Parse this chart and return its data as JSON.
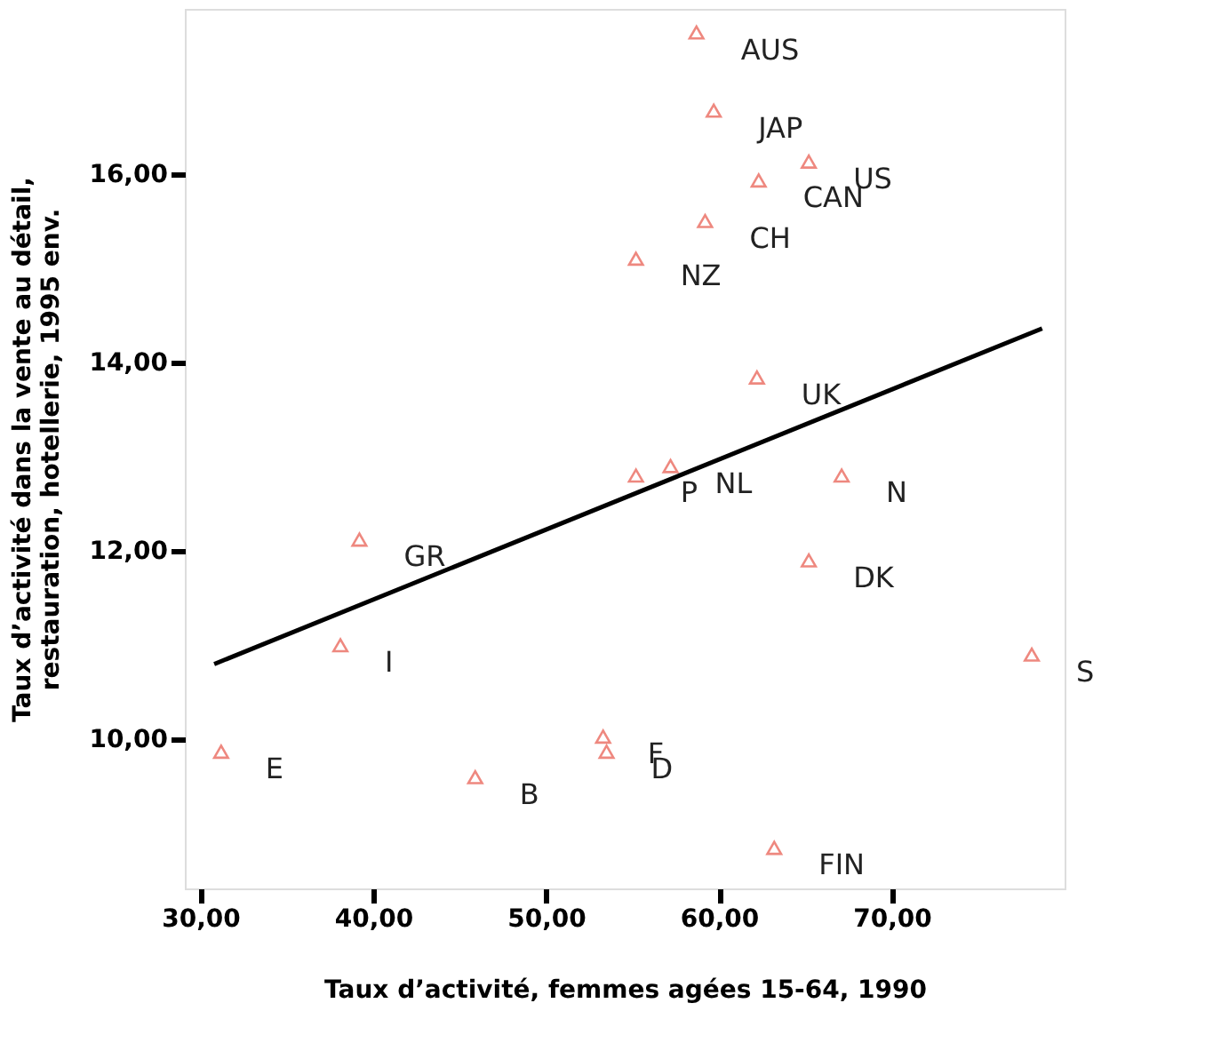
{
  "chart_data": {
    "type": "scatter",
    "xlabel": "Taux d’activité, femmes agées 15-64, 1990",
    "ylabel": "Taux d’activité dans la vente au détail,\nrestauration, hotellerie, 1995 env.",
    "xlim": [
      29.1,
      80
    ],
    "ylim": [
      8.42,
      17.75
    ],
    "xticks": [
      {
        "value": 30,
        "label": "30,00"
      },
      {
        "value": 40,
        "label": "40,00"
      },
      {
        "value": 50,
        "label": "50,00"
      },
      {
        "value": 60,
        "label": "60,00"
      },
      {
        "value": 70,
        "label": "70,00"
      }
    ],
    "yticks": [
      {
        "value": 10,
        "label": "10,00"
      },
      {
        "value": 12,
        "label": "12,00"
      },
      {
        "value": 14,
        "label": "14,00"
      },
      {
        "value": 16,
        "label": "16,00"
      }
    ],
    "grid": false,
    "series": [
      {
        "type": "scatter",
        "color": "#e8574a",
        "marker": "triangle",
        "x": [
          58.7,
          59.7,
          65.2,
          62.3,
          59.2,
          55.2,
          62.2,
          55.2,
          57.2,
          67.1,
          39.2,
          65.2,
          38.1,
          78.1,
          31.2,
          53.3,
          53.5,
          45.9,
          63.2
        ],
        "values": [
          17.5,
          16.67,
          16.13,
          15.93,
          15.5,
          15.1,
          13.84,
          12.8,
          12.9,
          12.8,
          12.12,
          11.9,
          11.0,
          10.9,
          9.87,
          10.03,
          9.87,
          9.6,
          8.85
        ]
      },
      {
        "type": "line",
        "color": "#000000",
        "line_style": "solid",
        "x": [
          30.8,
          78.7
        ],
        "values": [
          10.8,
          14.36
        ]
      }
    ],
    "annotations": [
      {
        "text": "AUS",
        "x": 58.7,
        "y": 17.5
      },
      {
        "text": "JAP",
        "x": 59.7,
        "y": 16.67
      },
      {
        "text": "US",
        "x": 65.2,
        "y": 16.13
      },
      {
        "text": "CAN",
        "x": 62.3,
        "y": 15.93
      },
      {
        "text": "CH",
        "x": 59.2,
        "y": 15.5
      },
      {
        "text": "NZ",
        "x": 55.2,
        "y": 15.1
      },
      {
        "text": "UK",
        "x": 62.2,
        "y": 13.84
      },
      {
        "text": "P",
        "x": 55.2,
        "y": 12.8
      },
      {
        "text": "NL",
        "x": 57.2,
        "y": 12.9
      },
      {
        "text": "N",
        "x": 67.1,
        "y": 12.8
      },
      {
        "text": "GR",
        "x": 39.2,
        "y": 12.12
      },
      {
        "text": "DK",
        "x": 65.2,
        "y": 11.9
      },
      {
        "text": "I",
        "x": 38.1,
        "y": 11.0
      },
      {
        "text": "S",
        "x": 78.1,
        "y": 10.9
      },
      {
        "text": "E",
        "x": 31.2,
        "y": 9.87
      },
      {
        "text": "F",
        "x": 53.3,
        "y": 10.03
      },
      {
        "text": "D",
        "x": 53.5,
        "y": 9.87
      },
      {
        "text": "B",
        "x": 45.9,
        "y": 9.6
      },
      {
        "text": "FIN",
        "x": 63.2,
        "y": 8.85
      }
    ]
  }
}
